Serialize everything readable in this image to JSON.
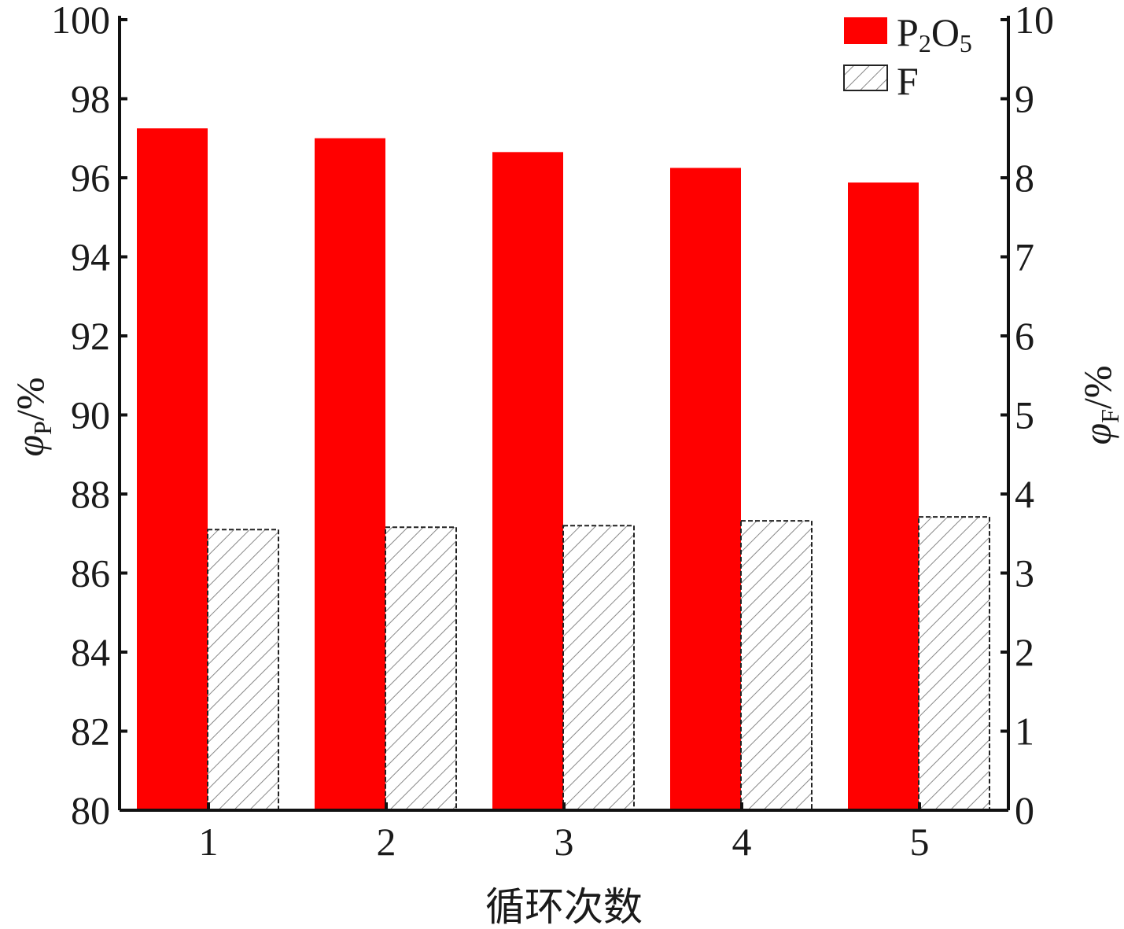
{
  "chart_data": {
    "type": "bar",
    "categories": [
      "1",
      "2",
      "3",
      "4",
      "5"
    ],
    "xlabel": "循环次数",
    "ylabel_left": {
      "symbol": "φ",
      "subscript": "P",
      "unit": "/%"
    },
    "ylabel_right": {
      "symbol": "φ",
      "subscript": "F",
      "unit": "/%"
    },
    "ylim_left": [
      80,
      100
    ],
    "ylim_right": [
      0,
      10
    ],
    "yticks_left": [
      "80",
      "82",
      "84",
      "86",
      "88",
      "90",
      "92",
      "94",
      "96",
      "98",
      "100"
    ],
    "yticks_right": [
      "0",
      "1",
      "2",
      "3",
      "4",
      "5",
      "6",
      "7",
      "8",
      "9",
      "10"
    ],
    "series": [
      {
        "name": "P2O5",
        "axis": "left",
        "color": "#ff0000",
        "pattern": "solid",
        "values": [
          97.25,
          97.0,
          96.65,
          96.25,
          95.88
        ]
      },
      {
        "name": "F",
        "axis": "right",
        "color": "#d8d8d8",
        "pattern": "hatch",
        "values": [
          3.55,
          3.58,
          3.6,
          3.66,
          3.71
        ]
      }
    ],
    "legend": {
      "position": "top-right",
      "entries": [
        {
          "main": "P",
          "sub1": "2",
          "mid": "O",
          "sub2": "5"
        },
        {
          "main": "F"
        }
      ]
    },
    "grid": false
  }
}
